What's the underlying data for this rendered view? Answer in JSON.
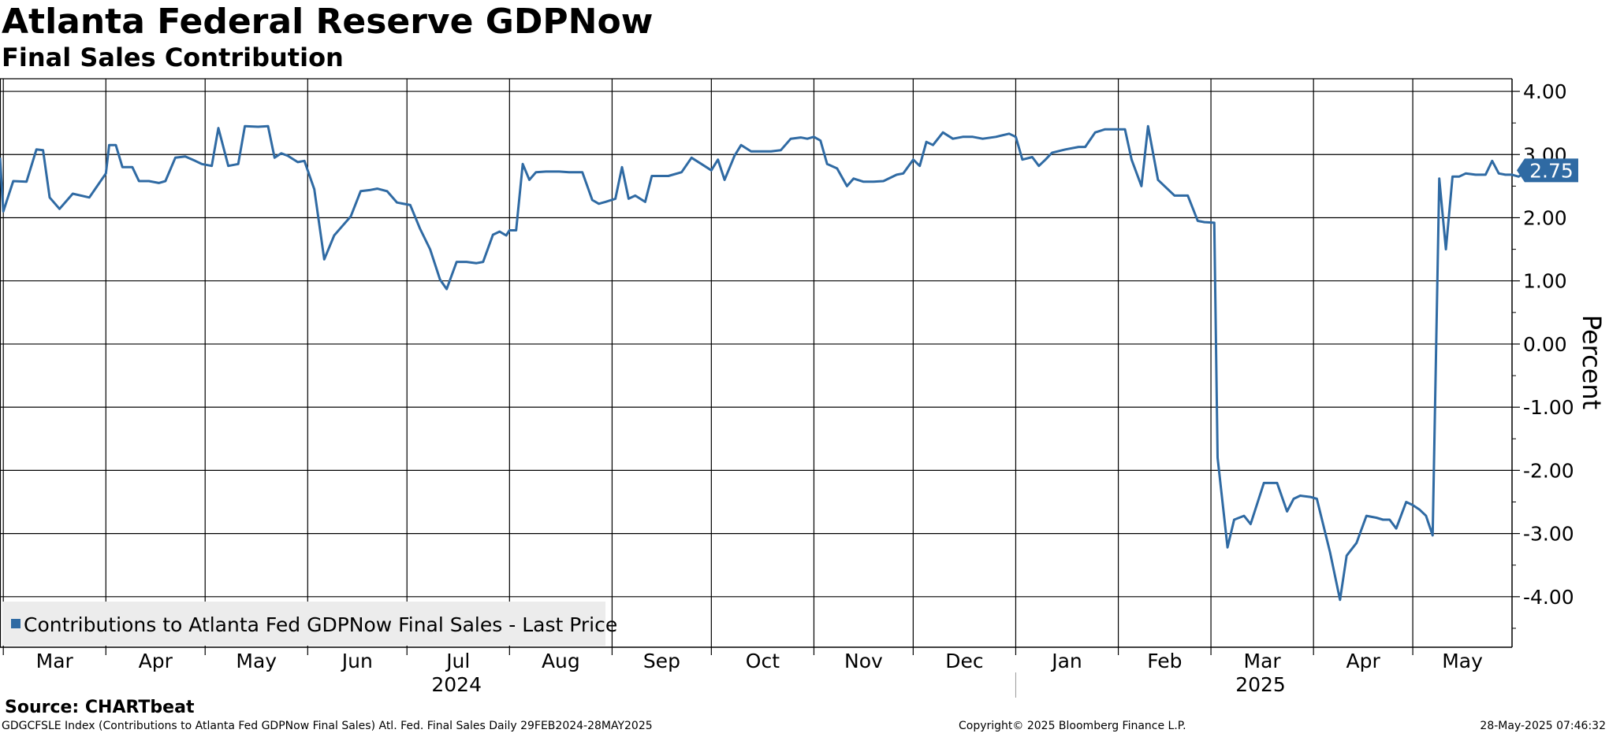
{
  "header": {
    "title": "Atlanta Federal Reserve GDPNow",
    "subtitle": "Final Sales Contribution"
  },
  "footer": {
    "source": "Source: CHARTbeat",
    "ticker_line": "GDGCFSLE Index (Contributions to Atlanta Fed GDPNow Final Sales) Atl. Fed. Final Sales  Daily 29FEB2024-28MAY2025",
    "copyright": "Copyright© 2025 Bloomberg Finance L.P.",
    "timestamp": "28-May-2025 07:46:32"
  },
  "chart_data": {
    "type": "line",
    "title": "Atlanta Federal Reserve GDPNow",
    "subtitle": "Final Sales Contribution",
    "ylabel": "Percent",
    "xlabel": "",
    "ylim": [
      -4.8,
      4.2
    ],
    "yticks": [
      "4.00",
      "3.00",
      "2.00",
      "1.00",
      "0.00",
      "-1.00",
      "-2.00",
      "-3.00",
      "-4.00"
    ],
    "ytick_values": [
      4,
      3,
      2,
      1,
      0,
      -1,
      -2,
      -3,
      -4
    ],
    "xlim": [
      "2024-02-29",
      "2025-05-31"
    ],
    "month_labels": [
      "Mar",
      "Apr",
      "May",
      "Jun",
      "Jul",
      "Aug",
      "Sep",
      "Oct",
      "Nov",
      "Dec",
      "Jan",
      "Feb",
      "Mar",
      "Apr",
      "May"
    ],
    "month_starts": [
      "2024-03-01",
      "2024-04-01",
      "2024-05-01",
      "2024-06-01",
      "2024-07-01",
      "2024-08-01",
      "2024-09-01",
      "2024-10-01",
      "2024-11-01",
      "2024-12-01",
      "2025-01-01",
      "2025-02-01",
      "2025-03-01",
      "2025-04-01",
      "2025-05-01"
    ],
    "year_labels": [
      "2024",
      "2025"
    ],
    "year_positions": [
      "2024-07-16",
      "2025-03-16"
    ],
    "year_divider": "2025-01-01",
    "grid": true,
    "legend_placement": "bottom-left",
    "last_value_label": "2.75",
    "series": [
      {
        "name": "Contributions to Atlanta Fed GDPNow Final Sales - Last Price",
        "color": "#2f6aa3",
        "points": [
          [
            "2024-02-29",
            2.95
          ],
          [
            "2024-03-01",
            2.1
          ],
          [
            "2024-03-04",
            2.58
          ],
          [
            "2024-03-08",
            2.57
          ],
          [
            "2024-03-11",
            3.08
          ],
          [
            "2024-03-13",
            3.07
          ],
          [
            "2024-03-15",
            2.32
          ],
          [
            "2024-03-18",
            2.14
          ],
          [
            "2024-03-22",
            2.38
          ],
          [
            "2024-03-27",
            2.32
          ],
          [
            "2024-04-01",
            2.7
          ],
          [
            "2024-04-02",
            3.15
          ],
          [
            "2024-04-04",
            3.15
          ],
          [
            "2024-04-06",
            2.8
          ],
          [
            "2024-04-09",
            2.8
          ],
          [
            "2024-04-11",
            2.58
          ],
          [
            "2024-04-14",
            2.58
          ],
          [
            "2024-04-17",
            2.55
          ],
          [
            "2024-04-19",
            2.58
          ],
          [
            "2024-04-22",
            2.95
          ],
          [
            "2024-04-25",
            2.97
          ],
          [
            "2024-04-28",
            2.9
          ],
          [
            "2024-04-30",
            2.85
          ],
          [
            "2024-05-03",
            2.82
          ],
          [
            "2024-05-05",
            3.42
          ],
          [
            "2024-05-08",
            2.82
          ],
          [
            "2024-05-11",
            2.85
          ],
          [
            "2024-05-13",
            3.45
          ],
          [
            "2024-05-17",
            3.44
          ],
          [
            "2024-05-20",
            3.45
          ],
          [
            "2024-05-22",
            2.95
          ],
          [
            "2024-05-24",
            3.02
          ],
          [
            "2024-05-26",
            2.98
          ],
          [
            "2024-05-29",
            2.88
          ],
          [
            "2024-05-31",
            2.9
          ],
          [
            "2024-06-03",
            2.45
          ],
          [
            "2024-06-06",
            1.34
          ],
          [
            "2024-06-09",
            1.72
          ],
          [
            "2024-06-11",
            1.84
          ],
          [
            "2024-06-14",
            2.02
          ],
          [
            "2024-06-17",
            2.42
          ],
          [
            "2024-06-20",
            2.44
          ],
          [
            "2024-06-22",
            2.46
          ],
          [
            "2024-06-25",
            2.42
          ],
          [
            "2024-06-28",
            2.24
          ],
          [
            "2024-07-02",
            2.2
          ],
          [
            "2024-07-05",
            1.82
          ],
          [
            "2024-07-08",
            1.5
          ],
          [
            "2024-07-11",
            1.02
          ],
          [
            "2024-07-13",
            0.87
          ],
          [
            "2024-07-16",
            1.3
          ],
          [
            "2024-07-19",
            1.3
          ],
          [
            "2024-07-22",
            1.28
          ],
          [
            "2024-07-24",
            1.3
          ],
          [
            "2024-07-27",
            1.73
          ],
          [
            "2024-07-29",
            1.78
          ],
          [
            "2024-07-31",
            1.72
          ],
          [
            "2024-08-01",
            1.8
          ],
          [
            "2024-08-03",
            1.8
          ],
          [
            "2024-08-05",
            2.85
          ],
          [
            "2024-08-07",
            2.6
          ],
          [
            "2024-08-09",
            2.72
          ],
          [
            "2024-08-12",
            2.73
          ],
          [
            "2024-08-16",
            2.73
          ],
          [
            "2024-08-19",
            2.72
          ],
          [
            "2024-08-23",
            2.72
          ],
          [
            "2024-08-26",
            2.28
          ],
          [
            "2024-08-28",
            2.22
          ],
          [
            "2024-08-30",
            2.25
          ],
          [
            "2024-09-02",
            2.3
          ],
          [
            "2024-09-04",
            2.8
          ],
          [
            "2024-09-06",
            2.3
          ],
          [
            "2024-09-08",
            2.35
          ],
          [
            "2024-09-11",
            2.25
          ],
          [
            "2024-09-13",
            2.66
          ],
          [
            "2024-09-18",
            2.66
          ],
          [
            "2024-09-22",
            2.72
          ],
          [
            "2024-09-25",
            2.95
          ],
          [
            "2024-09-28",
            2.85
          ],
          [
            "2024-10-01",
            2.75
          ],
          [
            "2024-10-03",
            2.92
          ],
          [
            "2024-10-05",
            2.6
          ],
          [
            "2024-10-08",
            2.98
          ],
          [
            "2024-10-10",
            3.15
          ],
          [
            "2024-10-13",
            3.05
          ],
          [
            "2024-10-19",
            3.05
          ],
          [
            "2024-10-22",
            3.07
          ],
          [
            "2024-10-25",
            3.25
          ],
          [
            "2024-10-28",
            3.27
          ],
          [
            "2024-10-30",
            3.25
          ],
          [
            "2024-11-01",
            3.28
          ],
          [
            "2024-11-03",
            3.22
          ],
          [
            "2024-11-05",
            2.85
          ],
          [
            "2024-11-08",
            2.78
          ],
          [
            "2024-11-11",
            2.5
          ],
          [
            "2024-11-13",
            2.62
          ],
          [
            "2024-11-16",
            2.57
          ],
          [
            "2024-11-19",
            2.57
          ],
          [
            "2024-11-22",
            2.58
          ],
          [
            "2024-11-26",
            2.68
          ],
          [
            "2024-11-28",
            2.7
          ],
          [
            "2024-12-01",
            2.92
          ],
          [
            "2024-12-03",
            2.82
          ],
          [
            "2024-12-05",
            3.2
          ],
          [
            "2024-12-07",
            3.15
          ],
          [
            "2024-12-10",
            3.35
          ],
          [
            "2024-12-13",
            3.25
          ],
          [
            "2024-12-16",
            3.28
          ],
          [
            "2024-12-19",
            3.28
          ],
          [
            "2024-12-22",
            3.25
          ],
          [
            "2024-12-26",
            3.28
          ],
          [
            "2024-12-30",
            3.33
          ],
          [
            "2025-01-01",
            3.28
          ],
          [
            "2025-01-03",
            2.92
          ],
          [
            "2025-01-06",
            2.96
          ],
          [
            "2025-01-08",
            2.82
          ],
          [
            "2025-01-10",
            2.92
          ],
          [
            "2025-01-12",
            3.03
          ],
          [
            "2025-01-16",
            3.08
          ],
          [
            "2025-01-20",
            3.12
          ],
          [
            "2025-01-22",
            3.12
          ],
          [
            "2025-01-25",
            3.35
          ],
          [
            "2025-01-28",
            3.4
          ],
          [
            "2025-02-03",
            3.4
          ],
          [
            "2025-02-05",
            2.92
          ],
          [
            "2025-02-08",
            2.5
          ],
          [
            "2025-02-10",
            3.45
          ],
          [
            "2025-02-13",
            2.6
          ],
          [
            "2025-02-16",
            2.45
          ],
          [
            "2025-02-18",
            2.35
          ],
          [
            "2025-02-22",
            2.35
          ],
          [
            "2025-02-25",
            1.95
          ],
          [
            "2025-02-27",
            1.93
          ],
          [
            "2025-03-02",
            1.92
          ],
          [
            "2025-03-03",
            -1.8
          ],
          [
            "2025-03-06",
            -3.22
          ],
          [
            "2025-03-08",
            -2.78
          ],
          [
            "2025-03-11",
            -2.72
          ],
          [
            "2025-03-13",
            -2.85
          ],
          [
            "2025-03-17",
            -2.2
          ],
          [
            "2025-03-21",
            -2.2
          ],
          [
            "2025-03-24",
            -2.65
          ],
          [
            "2025-03-26",
            -2.45
          ],
          [
            "2025-03-28",
            -2.4
          ],
          [
            "2025-03-31",
            -2.42
          ],
          [
            "2025-04-02",
            -2.45
          ],
          [
            "2025-04-06",
            -3.3
          ],
          [
            "2025-04-09",
            -4.05
          ],
          [
            "2025-04-11",
            -3.35
          ],
          [
            "2025-04-14",
            -3.15
          ],
          [
            "2025-04-17",
            -2.72
          ],
          [
            "2025-04-20",
            -2.75
          ],
          [
            "2025-04-22",
            -2.78
          ],
          [
            "2025-04-24",
            -2.78
          ],
          [
            "2025-04-26",
            -2.92
          ],
          [
            "2025-04-29",
            -2.5
          ],
          [
            "2025-05-01",
            -2.55
          ],
          [
            "2025-05-03",
            -2.62
          ],
          [
            "2025-05-05",
            -2.72
          ],
          [
            "2025-05-07",
            -3.03
          ],
          [
            "2025-05-09",
            2.62
          ],
          [
            "2025-05-11",
            1.5
          ],
          [
            "2025-05-13",
            2.65
          ],
          [
            "2025-05-15",
            2.65
          ],
          [
            "2025-05-17",
            2.7
          ],
          [
            "2025-05-20",
            2.68
          ],
          [
            "2025-05-23",
            2.68
          ],
          [
            "2025-05-25",
            2.9
          ],
          [
            "2025-05-27",
            2.7
          ],
          [
            "2025-05-29",
            2.68
          ],
          [
            "2025-05-31",
            2.68
          ],
          [
            "2025-06-02",
            2.65
          ],
          [
            "2025-06-04",
            2.72
          ],
          [
            "2025-06-06",
            2.75
          ]
        ]
      }
    ]
  }
}
